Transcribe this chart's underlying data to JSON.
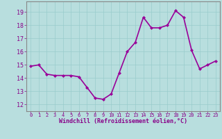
{
  "x": [
    0,
    1,
    2,
    3,
    4,
    5,
    6,
    7,
    8,
    9,
    10,
    11,
    12,
    13,
    14,
    15,
    16,
    17,
    18,
    19,
    20,
    21,
    22,
    23
  ],
  "y": [
    14.9,
    15.0,
    14.3,
    14.2,
    14.2,
    14.2,
    14.1,
    13.3,
    12.5,
    12.4,
    12.8,
    14.4,
    16.0,
    16.7,
    18.6,
    17.8,
    17.8,
    18.0,
    19.1,
    18.6,
    16.1,
    14.7,
    15.0,
    15.3
  ],
  "line_color": "#990099",
  "marker": "D",
  "marker_size": 2,
  "bg_color": "#b8dede",
  "grid_color": "#99cccc",
  "xlabel": "Windchill (Refroidissement éolien,°C)",
  "ylim": [
    11.5,
    19.8
  ],
  "xlim": [
    -0.5,
    23.5
  ],
  "yticks": [
    12,
    13,
    14,
    15,
    16,
    17,
    18,
    19
  ],
  "xticks": [
    0,
    1,
    2,
    3,
    4,
    5,
    6,
    7,
    8,
    9,
    10,
    11,
    12,
    13,
    14,
    15,
    16,
    17,
    18,
    19,
    20,
    21,
    22,
    23
  ],
  "tick_color": "#880088",
  "label_color": "#880088",
  "spine_color": "#888888",
  "line_width": 1.2,
  "figsize": [
    3.2,
    2.0
  ],
  "dpi": 100
}
